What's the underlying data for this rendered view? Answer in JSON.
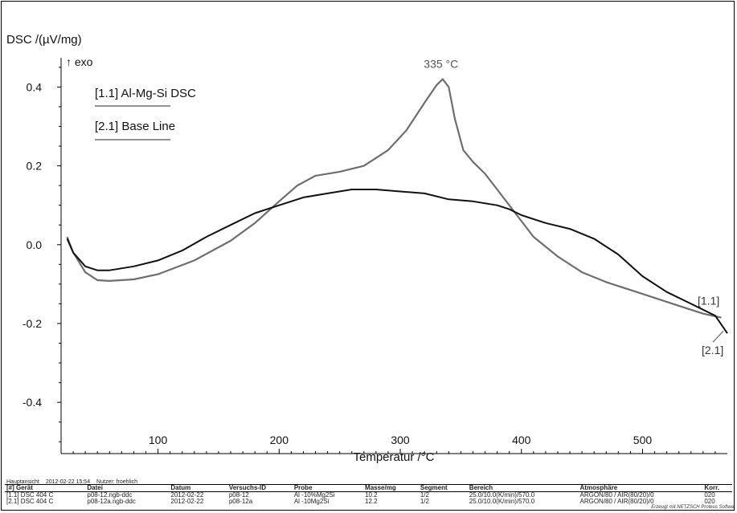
{
  "chart_data": {
    "type": "line",
    "ylabel": "DSC /(µV/mg)",
    "ylabel_sub": "↑ exo",
    "xlabel": "Temperatur /°C",
    "xlim": [
      20,
      570
    ],
    "ylim": [
      -0.53,
      0.58
    ],
    "x_ticks": [
      100,
      200,
      300,
      400,
      500
    ],
    "y_ticks": [
      0.4,
      0.2,
      0.0,
      -0.2,
      -0.4
    ],
    "y_tick_labels": [
      "0.4",
      "0.2",
      "0.0",
      "-0.2",
      "-0.4"
    ],
    "grid": false,
    "legend_position": "top-left",
    "series": [
      {
        "name": "[1.1] Al-Mg-Si DSC",
        "end_label": "[1.1]",
        "color": "#6e6e6e",
        "x": [
          25,
          30,
          40,
          50,
          60,
          80,
          100,
          130,
          160,
          180,
          200,
          215,
          230,
          250,
          270,
          290,
          305,
          320,
          330,
          335,
          340,
          345,
          352,
          360,
          370,
          380,
          395,
          410,
          430,
          450,
          470,
          490,
          510,
          530,
          550,
          565
        ],
        "y": [
          0.02,
          -0.02,
          -0.07,
          -0.09,
          -0.092,
          -0.088,
          -0.075,
          -0.04,
          0.01,
          0.055,
          0.11,
          0.15,
          0.175,
          0.185,
          0.2,
          0.24,
          0.29,
          0.36,
          0.405,
          0.42,
          0.4,
          0.32,
          0.24,
          0.21,
          0.18,
          0.14,
          0.08,
          0.02,
          -0.03,
          -0.07,
          -0.095,
          -0.115,
          -0.135,
          -0.155,
          -0.175,
          -0.185
        ]
      },
      {
        "name": "[2.1] Base Line",
        "end_label": "[2.1]",
        "color": "#111111",
        "x": [
          25,
          30,
          40,
          50,
          60,
          80,
          100,
          120,
          140,
          160,
          180,
          200,
          220,
          240,
          260,
          280,
          300,
          320,
          340,
          360,
          380,
          390,
          400,
          420,
          440,
          460,
          480,
          500,
          520,
          540,
          560,
          570
        ],
        "y": [
          0.015,
          -0.02,
          -0.055,
          -0.065,
          -0.065,
          -0.055,
          -0.04,
          -0.015,
          0.02,
          0.05,
          0.08,
          0.1,
          0.12,
          0.13,
          0.14,
          0.14,
          0.135,
          0.13,
          0.115,
          0.11,
          0.1,
          0.09,
          0.075,
          0.055,
          0.04,
          0.015,
          -0.025,
          -0.08,
          -0.12,
          -0.15,
          -0.18,
          -0.225
        ]
      }
    ],
    "annotations": [
      {
        "text": "335 °C",
        "x": 335,
        "y": 0.42
      }
    ]
  },
  "info": {
    "view": "Hauptansicht",
    "timestamp": "2012-02-22 15:54",
    "user": "Nutzer: froehlich"
  },
  "table": {
    "headers": [
      "[#] Gerät",
      "Datei",
      "Datum",
      "Versuchs-ID",
      "Probe",
      "Masse/mg",
      "Segment",
      "Bereich",
      "Atmosphäre",
      "Korr."
    ],
    "rows": [
      [
        "[1.1] DSC 404 C",
        "p08-12.ngb-ddc",
        "2012-02-22",
        "p08-12",
        "Al -10%Mg2Si",
        "10.2",
        "1/2",
        "25.0/10.0(K/min)/570.0",
        "ARGON/80 / AIR(80/20)/0",
        "020"
      ],
      [
        "[2.1] DSC 404 C",
        "p08-12a.ngb-ddc",
        "2012-02-22",
        "p08-12a",
        "Al -10Mg2Si",
        "12.2",
        "1/2",
        "25.0/10.0(K/min)/570.0",
        "ARGON/80 / AIR(80/20)/0",
        "020"
      ]
    ]
  },
  "credit": "Erzeugt mit NETZSCH Proteus Softwa"
}
